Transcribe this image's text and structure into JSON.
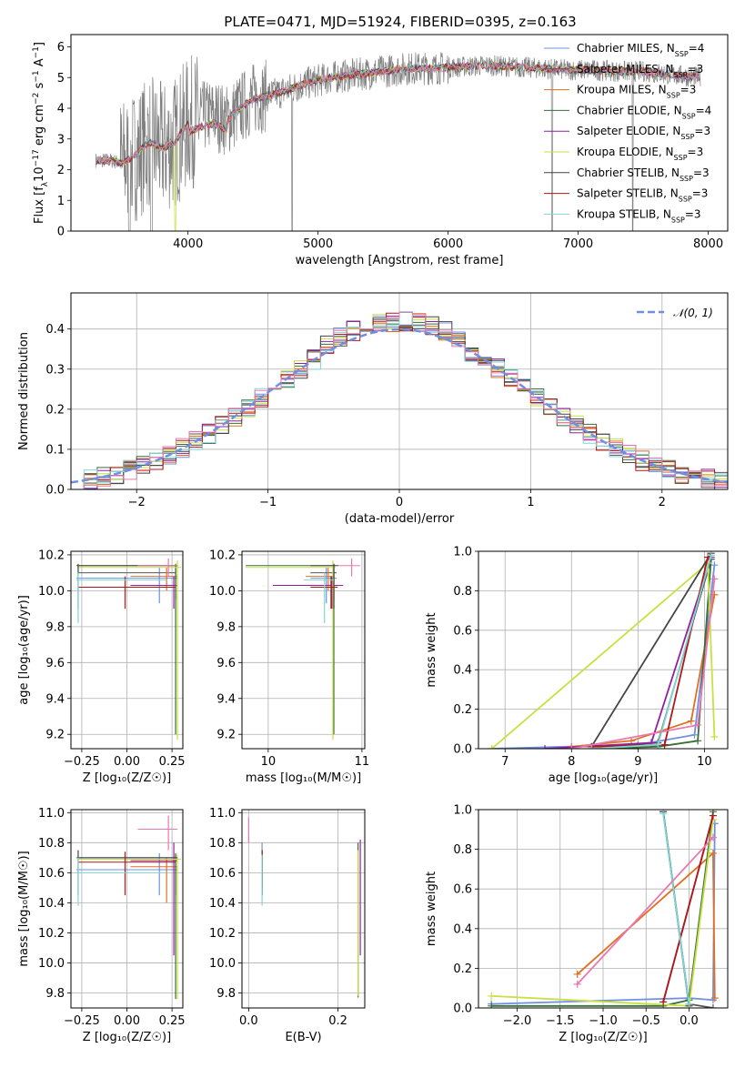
{
  "title": "PLATE=0471, MJD=51924, FIBERID=0395, z=0.163",
  "colors": [
    "#6f8fe0",
    "#555555",
    "#e07020",
    "#386e38",
    "#9020a0",
    "#c8e040",
    "#444444",
    "#b01818",
    "#7fd6d6",
    "#e878b0"
  ],
  "chart_data": [
    {
      "id": "spectrum",
      "type": "line",
      "xlabel": "wavelength [Angstrom, rest frame]",
      "ylabel": "Flux [f$_\\lambda$10$^{-17}$ erg cm$^{-2}$ s$^{-1}$ A$^{-1}$]",
      "ylabel_parts": [
        "Flux [f",
        "λ",
        "10",
        "−17",
        " erg cm",
        "−2",
        " s",
        "−1",
        " A",
        "−1",
        "]"
      ],
      "xlim": [
        3100,
        8150
      ],
      "ylim": [
        0,
        6.4
      ],
      "xticks": [
        4000,
        5000,
        6000,
        7000,
        8000
      ],
      "yticks": [
        0,
        1,
        2,
        3,
        4,
        5,
        6
      ],
      "legend_position": "upper-right",
      "legend": [
        {
          "label": "Chabrier MILES, N",
          "sub": "SSP",
          "suffix": "=4",
          "color": "#6f8fe0"
        },
        {
          "label": "Salpeter MILES, N",
          "sub": "SSP",
          "suffix": "=3",
          "color": "#555555"
        },
        {
          "label": "Kroupa MILES, N",
          "sub": "SSP",
          "suffix": "=3",
          "color": "#e07020"
        },
        {
          "label": "Chabrier ELODIE, N",
          "sub": "SSP",
          "suffix": "=4",
          "color": "#386e38"
        },
        {
          "label": "Salpeter ELODIE, N",
          "sub": "SSP",
          "suffix": "=3",
          "color": "#9020a0"
        },
        {
          "label": "Kroupa ELODIE, N",
          "sub": "SSP",
          "suffix": "=3",
          "color": "#c8e040"
        },
        {
          "label": "Chabrier STELIB, N",
          "sub": "SSP",
          "suffix": "=3",
          "color": "#444444"
        },
        {
          "label": "Salpeter STELIB, N",
          "sub": "SSP",
          "suffix": "=3",
          "color": "#b01818"
        },
        {
          "label": "Kroupa STELIB, N",
          "sub": "SSP",
          "suffix": "=3",
          "color": "#7fd6d6"
        }
      ],
      "continuum": [
        [
          3290,
          2.3
        ],
        [
          3400,
          2.3
        ],
        [
          3500,
          2.2
        ],
        [
          3600,
          2.5
        ],
        [
          3700,
          2.9
        ],
        [
          3800,
          2.7
        ],
        [
          3900,
          2.9
        ],
        [
          4000,
          3.5
        ],
        [
          4100,
          3.7
        ],
        [
          4200,
          3.8
        ],
        [
          4300,
          3.6
        ],
        [
          4400,
          4.0
        ],
        [
          4500,
          4.3
        ],
        [
          4700,
          4.5
        ],
        [
          4900,
          4.8
        ],
        [
          5100,
          5.0
        ],
        [
          5300,
          5.1
        ],
        [
          5500,
          5.2
        ],
        [
          5700,
          5.3
        ],
        [
          5900,
          5.3
        ],
        [
          6100,
          5.35
        ],
        [
          6300,
          5.4
        ],
        [
          6500,
          5.35
        ],
        [
          6700,
          5.3
        ],
        [
          6900,
          5.25
        ],
        [
          7100,
          5.25
        ],
        [
          7300,
          5.2
        ],
        [
          7500,
          5.2
        ],
        [
          7700,
          5.1
        ],
        [
          7940,
          5.0
        ]
      ]
    },
    {
      "id": "residuals",
      "type": "histogram",
      "xlabel": "(data-model)/error",
      "ylabel": "Normed distribution",
      "xlim": [
        -2.5,
        2.5
      ],
      "ylim": [
        0,
        0.49
      ],
      "xticks": [
        -2,
        -1,
        0,
        1,
        2
      ],
      "yticks": [
        0.0,
        0.1,
        0.2,
        0.3,
        0.4
      ],
      "legend": [
        {
          "label": "𝒩(0, 1)",
          "color": "#6f8fe0",
          "style": "dashed"
        }
      ],
      "legend_position": "upper-right",
      "bin_width": 0.1
    },
    {
      "id": "age-vs-Z",
      "type": "errorbar",
      "xlabel": "Z [log₁₀(Z/Z☉)]",
      "ylabel": "age  [log₁₀(age/yr)]",
      "xlim": [
        -0.31,
        0.31
      ],
      "ylim": [
        9.12,
        10.22
      ],
      "xticks": [
        -0.25,
        0.0,
        0.25
      ],
      "yticks": [
        9.2,
        9.4,
        9.6,
        9.8,
        10.0,
        10.2
      ]
    },
    {
      "id": "age-vs-mass",
      "type": "errorbar",
      "xlabel": "mass [log₁₀(M/M☉)]",
      "ylabel": "",
      "xlim": [
        9.72,
        11.03
      ],
      "ylim": [
        9.12,
        10.22
      ],
      "xticks": [
        10,
        11
      ],
      "yticks": [
        9.2,
        9.4,
        9.6,
        9.8,
        10.0,
        10.2
      ]
    },
    {
      "id": "weight-vs-age",
      "type": "line",
      "xlabel": "age  [log₁₀(age/yr)]",
      "ylabel": "mass weight",
      "xlim": [
        6.6,
        10.35
      ],
      "ylim": [
        0,
        1.0
      ],
      "xticks": [
        7,
        8,
        9,
        10
      ],
      "yticks": [
        0.0,
        0.2,
        0.4,
        0.6,
        0.8,
        1.0
      ]
    },
    {
      "id": "mass-vs-Z",
      "type": "errorbar",
      "xlabel": "Z [log₁₀(Z/Z☉)]",
      "ylabel": "mass [log₁₀(M/M☉)]",
      "xlim": [
        -0.31,
        0.31
      ],
      "ylim": [
        9.7,
        11.02
      ],
      "xticks": [
        -0.25,
        0.0,
        0.25
      ],
      "yticks": [
        9.8,
        10.0,
        10.2,
        10.4,
        10.6,
        10.8,
        11.0
      ]
    },
    {
      "id": "mass-vs-ebv",
      "type": "errorbar",
      "xlabel": "E(B-V)",
      "ylabel": "",
      "xlim": [
        -0.015,
        0.26
      ],
      "ylim": [
        9.7,
        11.02
      ],
      "xticks": [
        0.0,
        0.2
      ],
      "yticks": [
        9.8,
        10.0,
        10.2,
        10.4,
        10.6,
        10.8,
        11.0
      ]
    },
    {
      "id": "weight-vs-Z",
      "type": "line",
      "xlabel": "Z [log₁₀(Z/Z☉)]",
      "ylabel": "mass weight",
      "xlim": [
        -2.45,
        0.45
      ],
      "ylim": [
        0,
        1.0
      ],
      "xticks": [
        -2.0,
        -1.5,
        -1.0,
        -0.5,
        0.0
      ],
      "yticks": [
        0.0,
        0.2,
        0.4,
        0.6,
        0.8,
        1.0
      ]
    }
  ],
  "fits": [
    {
      "color": "#6f8fe0",
      "Z": 0.18,
      "zerr": [
        -0.28,
        0.28
      ],
      "age": 10.07,
      "ageErr": [
        9.93,
        10.13
      ],
      "mass": 10.62,
      "massErr": [
        10.45,
        10.73
      ],
      "ebv": 0.03,
      "ebvErr": [
        10.45,
        10.8
      ],
      "w_age": [
        [
          6.8,
          0.0
        ],
        [
          9.0,
          0.02
        ],
        [
          9.85,
          0.07
        ],
        [
          10.15,
          0.93
        ]
      ],
      "w_Z": [
        [
          -2.3,
          0.02
        ],
        [
          0.0,
          0.05
        ],
        [
          0.28,
          0.04
        ],
        [
          0.3,
          0.93
        ]
      ]
    },
    {
      "color": "#555555",
      "Z": 0.27,
      "zerr": [
        -0.27,
        0.27
      ],
      "age": 10.1,
      "ageErr": [
        9.95,
        10.14
      ],
      "mass": 10.7,
      "massErr": [
        10.45,
        10.73
      ],
      "ebv": 0.03,
      "ebvErr": [
        10.5,
        10.75
      ],
      "w_age": [
        [
          8.3,
          0.01
        ],
        [
          9.3,
          0.03
        ],
        [
          10.1,
          0.96
        ]
      ],
      "w_Z": [
        [
          -0.3,
          0.99
        ],
        [
          0.0,
          0.02
        ],
        [
          0.28,
          0.0
        ]
      ]
    },
    {
      "color": "#e07020",
      "Z": 0.22,
      "zerr": [
        0.02,
        0.28
      ],
      "age": 10.08,
      "ageErr": [
        10.0,
        10.13
      ],
      "mass": 10.64,
      "massErr": [
        10.4,
        10.7
      ],
      "ebv": 0.03,
      "ebvErr": [
        10.5,
        10.75
      ],
      "w_age": [
        [
          8.0,
          0.01
        ],
        [
          8.9,
          0.04
        ],
        [
          9.8,
          0.14
        ],
        [
          10.15,
          0.78
        ]
      ],
      "w_Z": [
        [
          -1.3,
          0.17
        ],
        [
          0.28,
          0.78
        ],
        [
          0.3,
          0.05
        ]
      ]
    },
    {
      "color": "#386e38",
      "Z": 0.27,
      "zerr": [
        -0.28,
        0.28
      ],
      "age": 10.14,
      "ageErr": [
        9.2,
        10.15
      ],
      "mass": 10.7,
      "massErr": [
        9.76,
        10.72
      ],
      "ebv": 0.245,
      "ebvErr": [
        9.77,
        10.8
      ],
      "w_age": [
        [
          8.3,
          0.0
        ],
        [
          9.3,
          0.01
        ],
        [
          9.9,
          0.04
        ],
        [
          10.1,
          0.96
        ]
      ],
      "w_Z": [
        [
          -2.3,
          0.01
        ],
        [
          -0.3,
          0.01
        ],
        [
          0.0,
          0.04
        ],
        [
          0.28,
          0.99
        ]
      ]
    },
    {
      "color": "#9020a0",
      "Z": 0.26,
      "zerr": [
        0.02,
        0.28
      ],
      "age": 10.03,
      "ageErr": [
        9.9,
        10.08
      ],
      "mass": 10.68,
      "massErr": [
        10.05,
        10.8
      ],
      "ebv": 0.25,
      "ebvErr": [
        10.05,
        10.82
      ],
      "w_age": [
        [
          7.6,
          0.0
        ],
        [
          9.2,
          0.03
        ],
        [
          10.1,
          0.97
        ]
      ],
      "w_Z": [
        [
          -0.3,
          0.03
        ],
        [
          0.28,
          0.97
        ]
      ]
    },
    {
      "color": "#c8e040",
      "Z": 0.28,
      "zerr": [
        -0.27,
        0.3
      ],
      "age": 10.13,
      "ageErr": [
        9.17,
        10.17
      ],
      "mass": 10.69,
      "massErr": [
        9.76,
        10.72
      ],
      "ebv": 0.245,
      "ebvErr": [
        9.78,
        10.75
      ],
      "w_age": [
        [
          6.8,
          0.0
        ],
        [
          10.05,
          0.94
        ],
        [
          10.15,
          0.06
        ]
      ],
      "w_Z": [
        [
          -2.3,
          0.06
        ],
        [
          0.0,
          0.01
        ],
        [
          0.28,
          0.95
        ]
      ]
    },
    {
      "color": "#444444",
      "Z": -0.27,
      "zerr": [
        -0.27,
        0.28
      ],
      "age": 10.14,
      "ageErr": [
        9.9,
        10.15
      ],
      "mass": 10.7,
      "massErr": [
        10.45,
        10.75
      ],
      "ebv": 0.03,
      "ebvErr": [
        10.45,
        10.75
      ],
      "w_age": [
        [
          8.3,
          0.01
        ],
        [
          10.1,
          0.99
        ]
      ],
      "w_Z": [
        [
          -0.3,
          0.99
        ],
        [
          0.0,
          0.01
        ]
      ]
    },
    {
      "color": "#b01818",
      "Z": -0.01,
      "zerr": [
        -0.27,
        0.27
      ],
      "age": 10.02,
      "ageErr": [
        9.9,
        10.08
      ],
      "mass": 10.67,
      "massErr": [
        10.45,
        10.74
      ],
      "ebv": 0.03,
      "ebvErr": [
        10.45,
        10.74
      ],
      "w_age": [
        [
          8.3,
          0.01
        ],
        [
          9.4,
          0.02
        ],
        [
          10.05,
          0.97
        ]
      ],
      "w_Z": [
        [
          -0.3,
          0.03
        ],
        [
          0.28,
          0.97
        ]
      ]
    },
    {
      "color": "#7fd6d6",
      "Z": -0.27,
      "zerr": [
        -0.28,
        0.22
      ],
      "age": 10.06,
      "ageErr": [
        9.82,
        10.1
      ],
      "mass": 10.6,
      "massErr": [
        10.38,
        10.7
      ],
      "ebv": 0.03,
      "ebvErr": [
        10.38,
        10.72
      ],
      "w_age": [
        [
          8.3,
          0.0
        ],
        [
          9.3,
          0.02
        ],
        [
          10.1,
          0.98
        ]
      ],
      "w_Z": [
        [
          -0.3,
          0.98
        ],
        [
          0.0,
          0.02
        ]
      ]
    },
    {
      "color": "#e878b0",
      "Z": 0.23,
      "zerr": [
        0.06,
        0.28
      ],
      "age": 10.14,
      "ageErr": [
        10.08,
        10.18
      ],
      "mass": 10.89,
      "massErr": [
        10.75,
        10.98
      ],
      "ebv": 0.0,
      "ebvErr": [
        10.8,
        10.97
      ],
      "w_age": [
        [
          8.0,
          0.0
        ],
        [
          9.9,
          0.12
        ],
        [
          10.15,
          0.86
        ]
      ],
      "w_Z": [
        [
          -1.3,
          0.12
        ],
        [
          0.28,
          0.86
        ]
      ]
    }
  ]
}
